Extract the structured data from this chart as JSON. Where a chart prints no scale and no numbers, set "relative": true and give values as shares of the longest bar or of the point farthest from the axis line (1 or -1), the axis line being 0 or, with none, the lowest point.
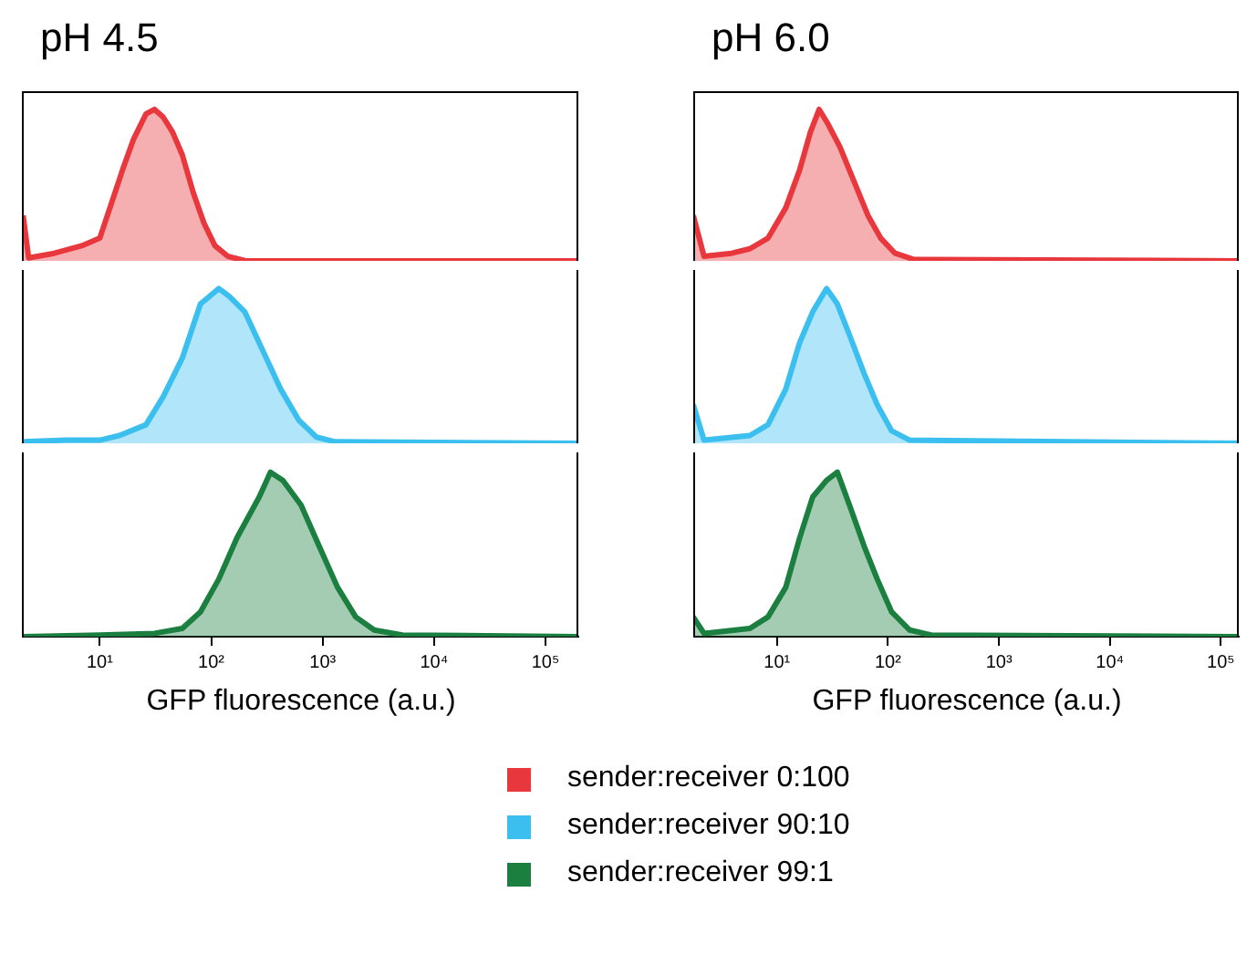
{
  "chart_data": [
    {
      "type": "area",
      "title": "pH 4.5",
      "relative": true,
      "legend": "bottom",
      "tick_labels": false,
      "xlim": [
        2,
        197000
      ],
      "log": "x",
      "series": [
        {
          "name": "sender:receiver 0:100",
          "color": "#e8383d",
          "x": [
            2.05,
            2.3,
            3.9,
            6.9,
            10,
            13,
            16,
            20,
            26,
            31,
            37,
            45,
            55,
            69,
            86,
            108,
            141,
            204,
            197000
          ],
          "values": [
            0.3,
            0.02,
            0.05,
            0.1,
            0.15,
            0.4,
            0.6,
            0.8,
            0.97,
            1,
            0.95,
            0.85,
            0.7,
            0.45,
            0.25,
            0.1,
            0.03,
            0,
            0
          ]
        }
      ]
    },
    {
      "type": "area",
      "relative": true,
      "legend": "bottom",
      "tick_labels": false,
      "xlim": [
        2,
        197000
      ],
      "log": "x",
      "series": [
        {
          "name": "sender:receiver 90:10",
          "color": "#3bbfef",
          "x": [
            2.05,
            5,
            10,
            15,
            26,
            37,
            55,
            80,
            117,
            145,
            200,
            290,
            420,
            610,
            880,
            1300,
            197000
          ],
          "values": [
            0.01,
            0.02,
            0.02,
            0.05,
            0.12,
            0.3,
            0.55,
            0.9,
            1,
            0.95,
            0.85,
            0.6,
            0.35,
            0.15,
            0.04,
            0.01,
            0
          ]
        }
      ]
    },
    {
      "type": "area",
      "relative": true,
      "legend": "bottom",
      "tick_labels": "x",
      "xlabel": "GFP fluorescence (a.u.)",
      "xlim": [
        2,
        197000
      ],
      "log": "x",
      "xticks": [
        {
          "value": 10,
          "label": "10¹"
        },
        {
          "value": 100,
          "label": "10²"
        },
        {
          "value": 1000,
          "label": "10³"
        },
        {
          "value": 10000,
          "label": "10⁴"
        },
        {
          "value": 100000,
          "label": "10⁵"
        }
      ],
      "series": [
        {
          "name": "sender:receiver 99:1",
          "color": "#1b7f3f",
          "x": [
            2.05,
            10,
            31,
            55,
            80,
            117,
            170,
            270,
            340,
            440,
            640,
            930,
            1360,
            1980,
            2900,
            5200,
            197000
          ],
          "values": [
            0,
            0.01,
            0.02,
            0.05,
            0.15,
            0.35,
            0.6,
            0.85,
            1,
            0.95,
            0.8,
            0.55,
            0.3,
            0.12,
            0.04,
            0.01,
            0
          ]
        }
      ]
    },
    {
      "type": "area",
      "title": "pH 6.0",
      "relative": true,
      "tick_labels": false,
      "xlim": [
        1.76,
        145000
      ],
      "log": "x",
      "series": [
        {
          "color": "#e8383d",
          "x": [
            1.76,
            2.2,
            3.9,
            5.7,
            8.3,
            12,
            16,
            20,
            24,
            29,
            37,
            51,
            66,
            86,
            116,
            170,
            145000
          ],
          "values": [
            0.3,
            0.03,
            0.05,
            0.08,
            0.15,
            0.35,
            0.6,
            0.85,
            1,
            0.9,
            0.75,
            0.5,
            0.3,
            0.15,
            0.05,
            0.01,
            0
          ]
        }
      ]
    },
    {
      "type": "area",
      "relative": true,
      "tick_labels": false,
      "xlim": [
        1.76,
        145000
      ],
      "log": "x",
      "series": [
        {
          "color": "#3bbfef",
          "x": [
            1.76,
            2.2,
            5.7,
            8.3,
            12,
            16,
            21,
            28,
            35,
            45,
            61,
            80,
            108,
            157,
            145000
          ],
          "values": [
            0.25,
            0.02,
            0.05,
            0.12,
            0.35,
            0.65,
            0.85,
            1,
            0.9,
            0.7,
            0.45,
            0.25,
            0.08,
            0.02,
            0
          ]
        }
      ]
    },
    {
      "type": "area",
      "relative": true,
      "tick_labels": "x",
      "xlabel": "GFP fluorescence (a.u.)",
      "xlim": [
        1.76,
        145000
      ],
      "log": "x",
      "xticks": [
        {
          "value": 10,
          "label": "10¹"
        },
        {
          "value": 100,
          "label": "10²"
        },
        {
          "value": 1000,
          "label": "10³"
        },
        {
          "value": 10000,
          "label": "10⁴"
        },
        {
          "value": 100000,
          "label": "10⁵"
        }
      ],
      "series": [
        {
          "color": "#1b7f3f",
          "x": [
            1.76,
            2.2,
            5.7,
            8.3,
            12,
            16,
            21,
            28,
            35,
            45,
            61,
            80,
            108,
            157,
            245,
            145000
          ],
          "values": [
            0.12,
            0.02,
            0.05,
            0.12,
            0.3,
            0.6,
            0.85,
            0.95,
            1,
            0.8,
            0.55,
            0.35,
            0.15,
            0.04,
            0.01,
            0
          ]
        }
      ]
    }
  ]
}
